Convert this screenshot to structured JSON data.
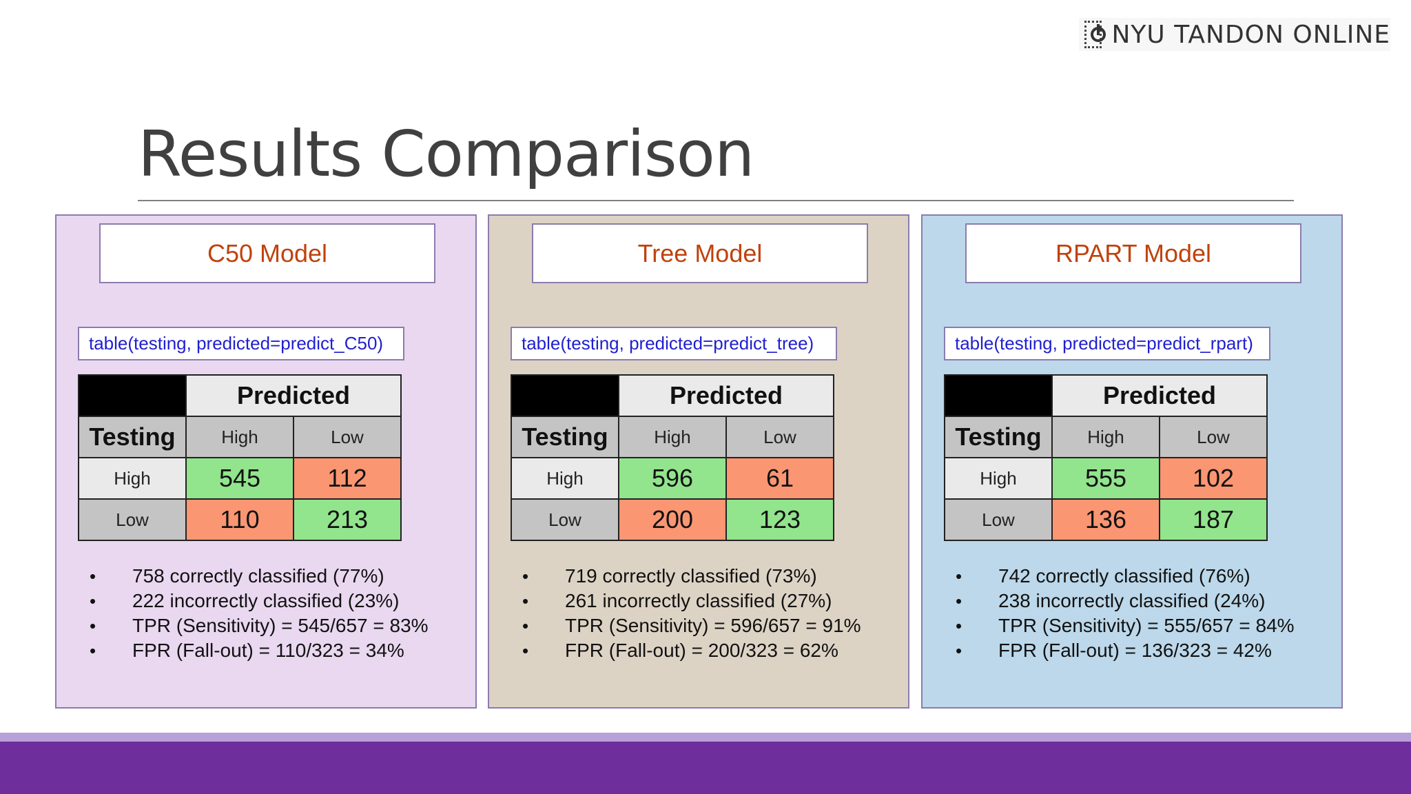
{
  "brand": {
    "name": "NYU TANDON ONLINE"
  },
  "slide": {
    "title": "Results Comparison"
  },
  "colors": {
    "correct": "#92e48d",
    "incorrect": "#fb9672",
    "model_title": "#c0420c",
    "code": "#1f1fd0",
    "footer": "#6e2e9c"
  },
  "labels": {
    "predicted": "Predicted",
    "testing": "Testing",
    "high": "High",
    "low": "Low"
  },
  "panels": [
    {
      "title": "C50 Model",
      "code": "table(testing, predicted=predict_C50)",
      "matrix": {
        "high_high": "545",
        "high_low": "112",
        "low_high": "110",
        "low_low": "213"
      },
      "stats": [
        "758 correctly classified (77%)",
        "222 incorrectly classified (23%)",
        "TPR (Sensitivity) = 545/657 = 83%",
        "FPR (Fall-out) = 110/323 = 34%"
      ]
    },
    {
      "title": "Tree Model",
      "code": "table(testing, predicted=predict_tree)",
      "matrix": {
        "high_high": "596",
        "high_low": "61",
        "low_high": "200",
        "low_low": "123"
      },
      "stats": [
        "719 correctly classified (73%)",
        "261 incorrectly classified (27%)",
        "TPR (Sensitivity) = 596/657 = 91%",
        "FPR (Fall-out) = 200/323 = 62%"
      ]
    },
    {
      "title": "RPART Model",
      "code": "table(testing, predicted=predict_rpart)",
      "matrix": {
        "high_high": "555",
        "high_low": "102",
        "low_high": "136",
        "low_low": "187"
      },
      "stats": [
        "742 correctly classified (76%)",
        "238 incorrectly classified (24%)",
        "TPR (Sensitivity) = 555/657 = 84%",
        "FPR (Fall-out) = 136/323 = 42%"
      ]
    }
  ]
}
